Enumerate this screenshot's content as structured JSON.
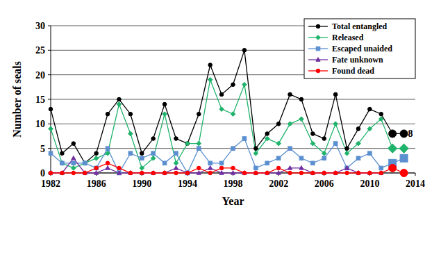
{
  "chart_data": {
    "type": "line",
    "x_label": "Year",
    "y_label": "Number of seals",
    "x": [
      1982,
      1983,
      1984,
      1985,
      1986,
      1987,
      1988,
      1989,
      1990,
      1991,
      1992,
      1993,
      1994,
      1995,
      1996,
      1997,
      1998,
      1999,
      2000,
      2001,
      2002,
      2003,
      2004,
      2005,
      2006,
      2007,
      2008,
      2009,
      2010,
      2011,
      2012,
      2013
    ],
    "xlim": [
      1982,
      2014
    ],
    "xticks": [
      1982,
      1986,
      1990,
      1994,
      1998,
      2002,
      2006,
      2010,
      2014
    ],
    "ylim": [
      0,
      30
    ],
    "yticks": [
      0,
      5,
      10,
      15,
      20,
      25,
      30
    ],
    "grid": true,
    "legend": "top-right",
    "series": [
      {
        "name": "Total entangled",
        "color": "#000000",
        "marker": "circle",
        "values": [
          13,
          4,
          6,
          2,
          4,
          12,
          15,
          12,
          4,
          7,
          14,
          7,
          6,
          12,
          22,
          16,
          18,
          25,
          5,
          8,
          10,
          16,
          15,
          8,
          7,
          16,
          5,
          9,
          13,
          12,
          8,
          8
        ]
      },
      {
        "name": "Released",
        "color": "#1fb36b",
        "marker": "diamond",
        "values": [
          9,
          2,
          1,
          2,
          3,
          4,
          14,
          8,
          1,
          3,
          12,
          2,
          6,
          6,
          19,
          13,
          12,
          18,
          4,
          7,
          6,
          10,
          11,
          6,
          4,
          10,
          4,
          6,
          9,
          11,
          5,
          5
        ]
      },
      {
        "name": "Escaped unaided",
        "color": "#5b8fd0",
        "marker": "square",
        "values": [
          4,
          2,
          2,
          2,
          1,
          5,
          0,
          4,
          3,
          4,
          2,
          4,
          0,
          5,
          2,
          2,
          5,
          7,
          1,
          2,
          3,
          5,
          3,
          2,
          3,
          6,
          1,
          3,
          4,
          1,
          2,
          3
        ]
      },
      {
        "name": "Fate unknown",
        "color": "#7030a0",
        "marker": "triangle",
        "values": [
          0,
          0,
          3,
          0,
          0,
          1,
          0,
          0,
          0,
          0,
          0,
          1,
          0,
          0,
          1,
          0,
          0,
          0,
          0,
          0,
          0,
          1,
          1,
          0,
          0,
          0,
          1,
          0,
          0,
          0,
          null,
          null
        ]
      },
      {
        "name": "Found dead",
        "color": "#ff0000",
        "marker": "circle",
        "values": [
          0,
          0,
          0,
          0,
          1,
          2,
          1,
          0,
          0,
          0,
          0,
          0,
          0,
          1,
          0,
          1,
          1,
          0,
          0,
          0,
          1,
          0,
          0,
          0,
          0,
          0,
          0,
          0,
          0,
          0,
          1,
          0
        ]
      }
    ],
    "annotations": [
      {
        "text": "8",
        "x": 2013,
        "y": 8
      }
    ]
  }
}
